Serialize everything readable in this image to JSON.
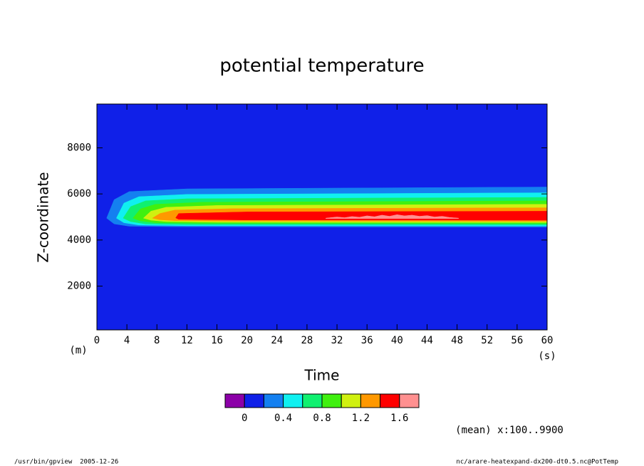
{
  "chart_data": {
    "type": "contour",
    "title": "potential temperature",
    "xlabel": "Time",
    "ylabel": "Z-coordinate",
    "xunit": "(s)",
    "yunit": "(m)",
    "xlim": [
      0,
      60
    ],
    "xticks": [
      0,
      4,
      8,
      12,
      16,
      20,
      24,
      28,
      32,
      36,
      40,
      44,
      48,
      52,
      56,
      60
    ],
    "ylim": [
      100,
      9900
    ],
    "yticks": [
      2000,
      4000,
      6000,
      8000
    ],
    "levels": [
      -0.2,
      0,
      0.2,
      0.4,
      0.6,
      0.8,
      1.0,
      1.2,
      1.4,
      1.6,
      1.8
    ],
    "colors": [
      "#8c00a8",
      "#1020e8",
      "#1480f0",
      "#10f0f0",
      "#10f070",
      "#40f010",
      "#d0f010",
      "#ff9800",
      "#ff0000",
      "#ff9090"
    ],
    "colorbar_ticks": [
      0,
      0.4,
      0.8,
      1.2,
      1.6
    ],
    "regions": [
      {
        "level": 0,
        "t": [
          0,
          60,
          60,
          0
        ],
        "z": [
          100,
          100,
          9900,
          9900
        ]
      },
      {
        "level": 0.2,
        "t": [
          1.3,
          2.3,
          4.3,
          12,
          60,
          60,
          12,
          4.3,
          2.3
        ],
        "z": [
          4950,
          5750,
          6100,
          6220,
          6300,
          4560,
          4570,
          4600,
          4700
        ]
      },
      {
        "level": 0.4,
        "t": [
          2.6,
          3.6,
          5.6,
          12,
          60,
          60,
          12,
          5.6,
          3.6
        ],
        "z": [
          4950,
          5600,
          5880,
          5980,
          6050,
          4610,
          4620,
          4650,
          4750
        ]
      },
      {
        "level": 0.6,
        "t": [
          3.5,
          4.5,
          6.5,
          12,
          60,
          60,
          12,
          6.5,
          4.5
        ],
        "z": [
          4950,
          5450,
          5700,
          5790,
          5850,
          4660,
          4670,
          4700,
          4800
        ]
      },
      {
        "level": 0.8,
        "t": [
          4.8,
          5.8,
          7.8,
          14,
          60,
          60,
          14,
          7.8,
          5.8
        ],
        "z": [
          4950,
          5350,
          5550,
          5640,
          5700,
          4710,
          4720,
          4750,
          4830
        ]
      },
      {
        "level": 1.0,
        "t": [
          6.2,
          7.2,
          9.2,
          16,
          60,
          60,
          16,
          9.2,
          7.2
        ],
        "z": [
          4950,
          5250,
          5420,
          5500,
          5550,
          4760,
          4770,
          4800,
          4860
        ]
      },
      {
        "level": 1.2,
        "t": [
          7.4,
          8.4,
          10.4,
          18,
          60,
          60,
          18,
          10.4,
          8.4
        ],
        "z": [
          4950,
          5150,
          5300,
          5360,
          5400,
          4810,
          4820,
          4840,
          4880
        ]
      },
      {
        "level": 1.4,
        "t": [
          10.5,
          10.9,
          20,
          60,
          60,
          20,
          10.9
        ],
        "z": [
          4960,
          5150,
          5220,
          5250,
          4860,
          4870,
          4900
        ]
      },
      {
        "level": 1.6,
        "t": [
          30.5,
          32,
          33,
          34,
          35,
          36,
          37,
          38,
          39,
          40,
          41,
          42,
          43,
          44,
          45,
          46,
          47,
          48.2,
          48.2,
          30.5
        ],
        "z": [
          4950,
          5000,
          4970,
          5020,
          4990,
          5050,
          5010,
          5080,
          5030,
          5100,
          5050,
          5080,
          5030,
          5060,
          5000,
          5030,
          4980,
          4950,
          4930,
          4930
        ]
      }
    ],
    "annotation": "(mean) x:100..9900",
    "footer_left": "/usr/bin/gpview  2005-12-26",
    "footer_right": "nc/arare-heatexpand-dx200-dt0.5.nc@PotTemp"
  }
}
